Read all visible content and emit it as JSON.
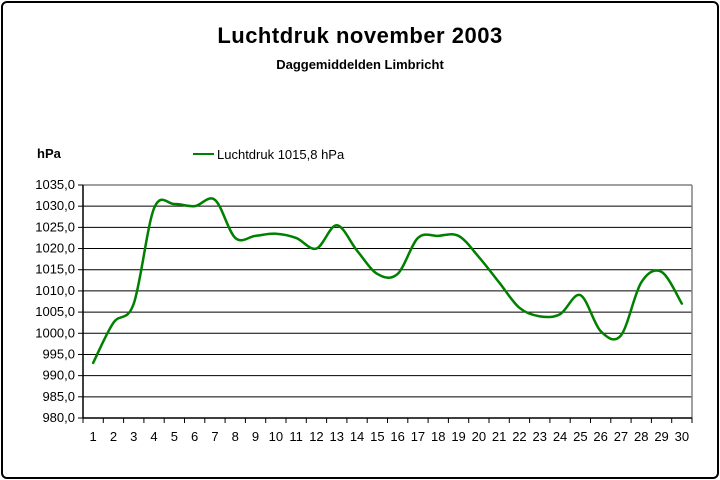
{
  "header": {
    "title": "Luchtdruk november 2003",
    "subtitle": "Daggemiddelden Limbricht"
  },
  "axis_unit_label": "hPa",
  "legend": {
    "label": "Luchtdruk 1015,8 hPa",
    "color": "#008000"
  },
  "chart_data": {
    "type": "line",
    "smooth": true,
    "title": "Luchtdruk november 2003",
    "subtitle": "Daggemiddelden Limbricht",
    "ylabel": "hPa",
    "xlabel": "",
    "x": [
      1,
      2,
      3,
      4,
      5,
      6,
      7,
      8,
      9,
      10,
      11,
      12,
      13,
      14,
      15,
      16,
      17,
      18,
      19,
      20,
      21,
      22,
      23,
      24,
      25,
      26,
      27,
      28,
      29,
      30
    ],
    "series": [
      {
        "name": "Luchtdruk 1015,8 hPa",
        "color": "#008000",
        "values": [
          993,
          1002.5,
          1007,
          1029.5,
          1030.5,
          1030,
          1031.5,
          1022.5,
          1023,
          1023.5,
          1022.5,
          1020,
          1025.5,
          1019.5,
          1014,
          1014,
          1022.5,
          1023,
          1023,
          1018,
          1012,
          1006,
          1004,
          1004.5,
          1009,
          1000.5,
          999.5,
          1012,
          1014.5,
          1007
        ]
      }
    ],
    "ylim": [
      980,
      1035
    ],
    "ytick_step": 5,
    "ytick_labels": [
      "1035,0",
      "1030,0",
      "1025,0",
      "1020,0",
      "1015,0",
      "1010,0",
      "1005,0",
      "1000,0",
      "995,0",
      "990,0",
      "985,0",
      "980,0"
    ],
    "grid": true,
    "legend_position": "top",
    "colors": {
      "line": "#008000",
      "gridline": "#000000",
      "plot_border": "#808080",
      "axis": "#000000",
      "background": "#ffffff",
      "text": "#000000"
    }
  }
}
